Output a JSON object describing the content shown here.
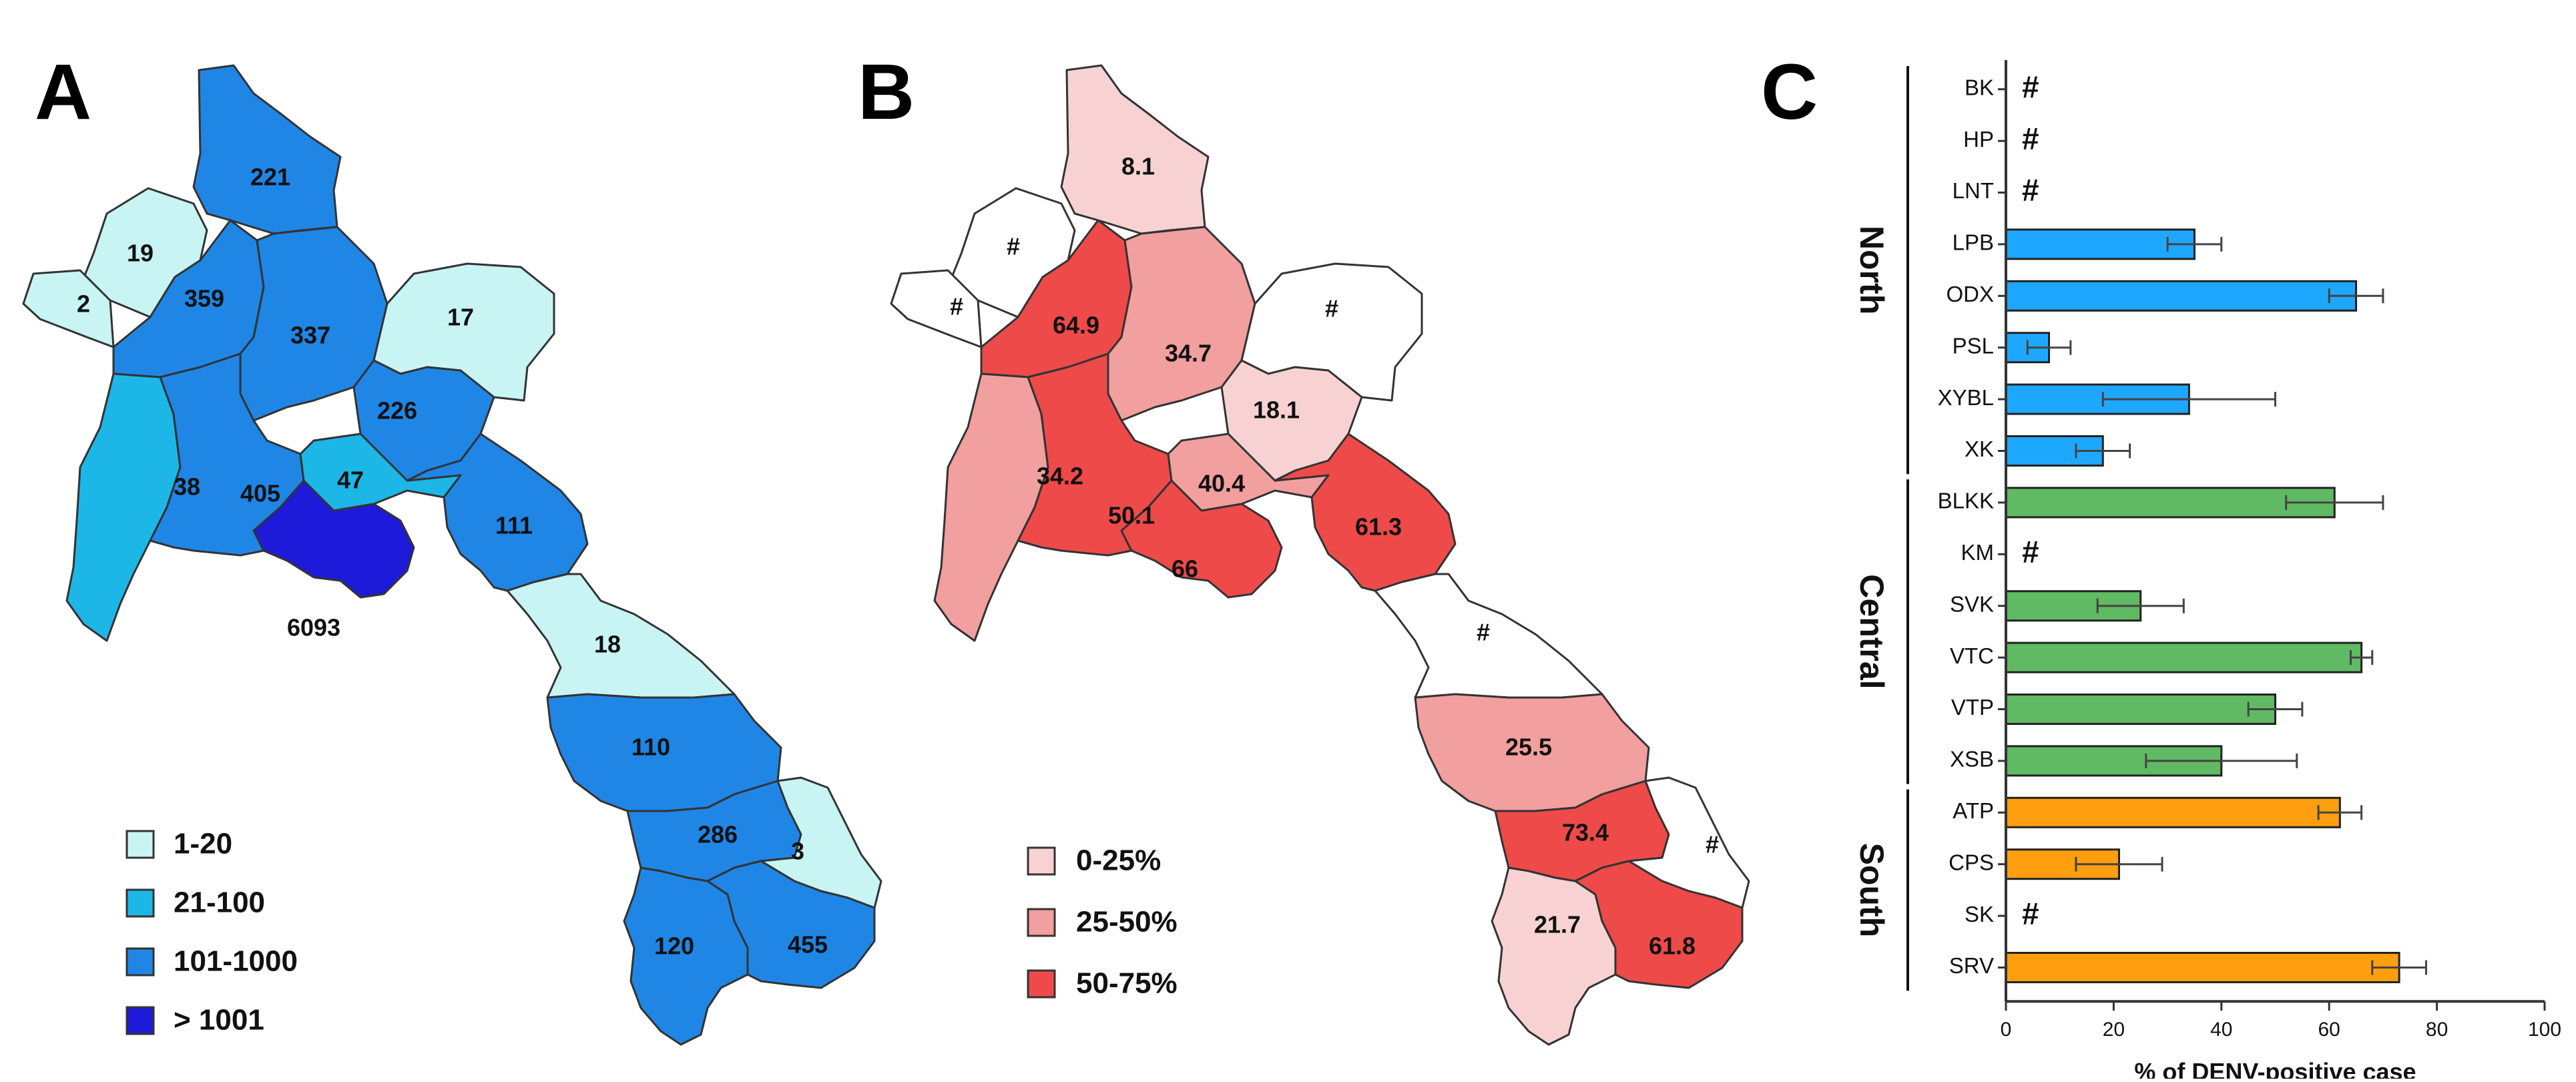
{
  "panels": {
    "a": "A",
    "b": "B",
    "c": "C"
  },
  "colors": {
    "case_bins": [
      "#c8f4f4",
      "#1cb7e7",
      "#1f86e6",
      "#1d1ad9"
    ],
    "pct_bins": [
      "#f8d2d2",
      "#f29f9f",
      "#ee4a4a"
    ],
    "region_north": "#1ea7ff",
    "region_central": "#60b963",
    "region_south": "#ff9e0f",
    "no_data": "#ffffff",
    "outline": "#333333"
  },
  "legend_a": [
    {
      "label": "1-20",
      "color": "#c8f4f4"
    },
    {
      "label": "21-100",
      "color": "#1cb7e7"
    },
    {
      "label": "101-1000",
      "color": "#1f86e6"
    },
    {
      "label": "> 1001",
      "color": "#1d1ad9"
    }
  ],
  "legend_b": [
    {
      "label": "0-25%",
      "color": "#f8d2d2"
    },
    {
      "label": "25-50%",
      "color": "#f29f9f"
    },
    {
      "label": "50-75%",
      "color": "#ee4a4a"
    }
  ],
  "map_a_values": [
    "221",
    "19",
    "2",
    "359",
    "337",
    "17",
    "38",
    "226",
    "405",
    "47",
    "111",
    "6093",
    "18",
    "110",
    "286",
    "3",
    "120",
    "455"
  ],
  "map_b_values": [
    "8.1",
    "#",
    "#",
    "64.9",
    "34.7",
    "#",
    "18.1",
    "34.2",
    "50.1",
    "40.4",
    "61.3",
    "66",
    "#",
    "25.5",
    "73.4",
    "#",
    "21.7",
    "61.8"
  ],
  "chart_data": {
    "type": "bar",
    "orientation": "horizontal",
    "xlabel": "% of DENV-positive case",
    "xlim": [
      0,
      100
    ],
    "xticks": [
      0,
      20,
      40,
      60,
      80,
      100
    ],
    "not_available_marker": "#",
    "groups": [
      {
        "name": "North",
        "color": "#1ea7ff",
        "categories": [
          "BK",
          "HP",
          "LNT",
          "LPB",
          "ODX",
          "PSL",
          "XYBL",
          "XK"
        ],
        "values": [
          null,
          null,
          null,
          35,
          65,
          8,
          34,
          18
        ],
        "errors": [
          null,
          null,
          null,
          5,
          5,
          4,
          16,
          5
        ]
      },
      {
        "name": "Central",
        "color": "#60b963",
        "categories": [
          "BLKK",
          "KM",
          "SVK",
          "VTC",
          "VTP",
          "XSB"
        ],
        "values": [
          61,
          null,
          25,
          66,
          50,
          40
        ],
        "errors": [
          9,
          null,
          8,
          2,
          5,
          14
        ]
      },
      {
        "name": "South",
        "color": "#ff9e0f",
        "categories": [
          "ATP",
          "CPS",
          "SK",
          "SRV"
        ],
        "values": [
          62,
          21,
          null,
          73
        ],
        "errors": [
          4,
          8,
          null,
          5
        ]
      }
    ]
  }
}
